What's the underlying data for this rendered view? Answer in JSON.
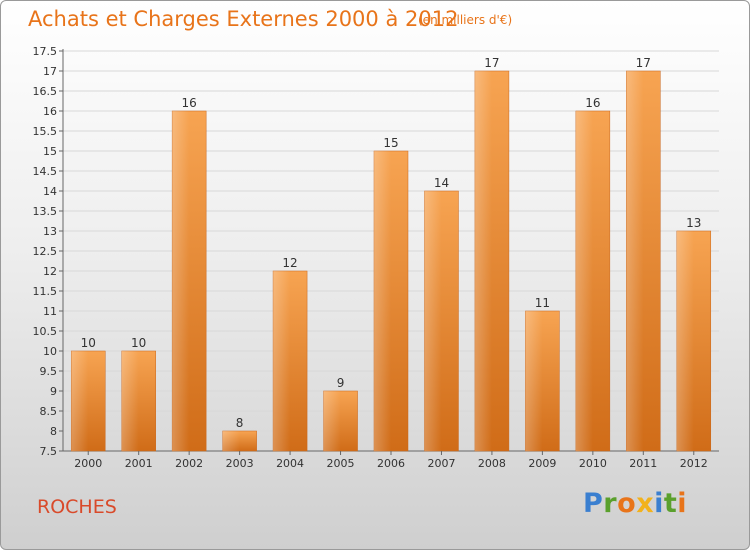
{
  "title": "Achats et Charges Externes 2000 à 2012",
  "subtitle": "(en milliers d'€)",
  "commune": "ROCHES",
  "logo": {
    "letters": [
      "P",
      "r",
      "o",
      "x",
      "i",
      "t",
      "i"
    ],
    "colors": [
      "#3a7fd0",
      "#5aa02c",
      "#e8741a",
      "#f2b21c",
      "#3a7fd0",
      "#5aa02c",
      "#e8741a"
    ]
  },
  "colors": {
    "bar": "#f0923a",
    "bar_dark": "#d4701c",
    "text_accent": "#e8741a",
    "commune": "#d94a2a"
  },
  "chart_data": {
    "type": "bar",
    "title": "Achats et Charges Externes 2000 à 2012",
    "subtitle": "(en milliers d'€)",
    "xlabel": "",
    "ylabel": "",
    "categories": [
      "2000",
      "2001",
      "2002",
      "2003",
      "2004",
      "2005",
      "2006",
      "2007",
      "2008",
      "2009",
      "2010",
      "2011",
      "2012"
    ],
    "values": [
      10,
      10,
      16,
      8,
      12,
      9,
      15,
      14,
      17,
      11,
      16,
      17,
      13
    ],
    "data_labels": [
      "10",
      "10",
      "16",
      "8",
      "12",
      "9",
      "15",
      "14",
      "17",
      "11",
      "16",
      "17",
      "13"
    ],
    "ylim": [
      7.5,
      17.5
    ],
    "yticks": [
      "7.5",
      "8",
      "8.5",
      "9",
      "9.5",
      "10",
      "10.5",
      "11",
      "11.5",
      "12",
      "12.5",
      "13",
      "13.5",
      "14",
      "14.5",
      "15",
      "15.5",
      "16",
      "16.5",
      "17",
      "17.5"
    ],
    "grid": true
  }
}
